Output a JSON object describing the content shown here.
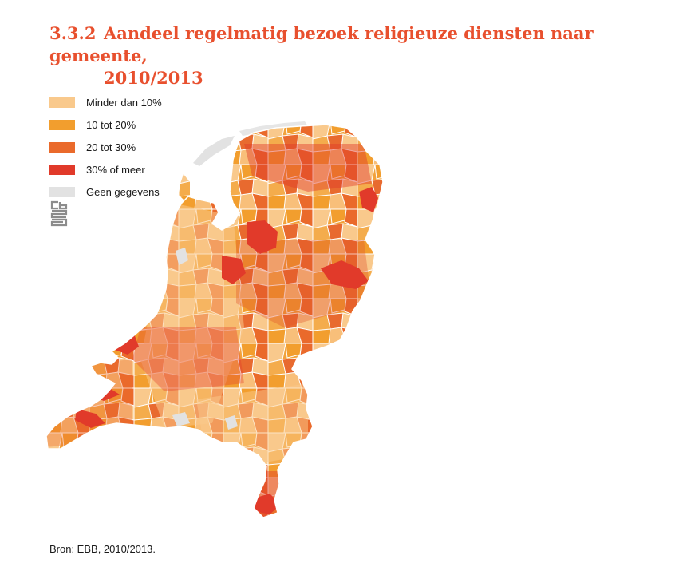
{
  "title": {
    "number": "3.3.2",
    "line1": "Aandeel regelmatig bezoek religieuze diensten naar gemeente,",
    "line2": "2010/2013"
  },
  "legend": {
    "items": [
      {
        "label": "Minder dan 10%",
        "color": "#f9c98c"
      },
      {
        "label": "10 tot 20%",
        "color": "#f29e2e"
      },
      {
        "label": "20 tot 30%",
        "color": "#ea6a2b"
      },
      {
        "label": "30% of meer",
        "color": "#e13a2a"
      },
      {
        "label": "Geen gegevens",
        "color": "#e2e2e2"
      }
    ]
  },
  "logo": {
    "name": "cbs-logo-icon"
  },
  "map": {
    "region": "Nederland",
    "icon": "netherlands-municipality-map"
  },
  "source": {
    "text": "Bron: EBB, 2010/2013."
  }
}
